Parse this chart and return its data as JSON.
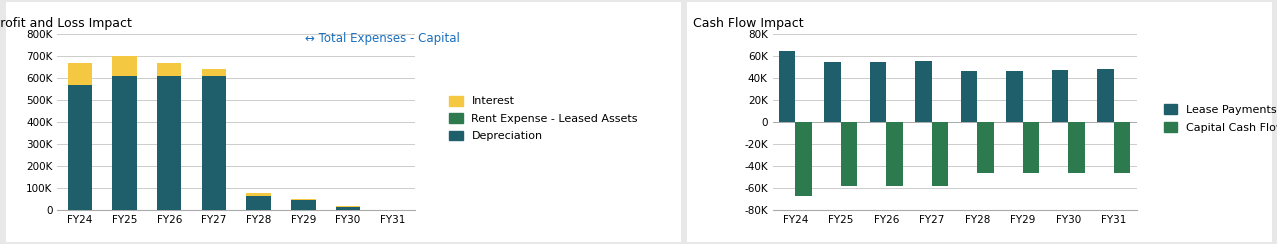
{
  "pl_categories": [
    "FY24",
    "FY25",
    "FY26",
    "FY27",
    "FY28",
    "FY29",
    "FY30",
    "FY31"
  ],
  "pl_depreciation": [
    570000,
    610000,
    610000,
    610000,
    65000,
    45000,
    15000,
    0
  ],
  "pl_rent": [
    0,
    0,
    0,
    0,
    0,
    0,
    0,
    0
  ],
  "pl_interest": [
    100000,
    90000,
    60000,
    30000,
    10000,
    5000,
    2000,
    0
  ],
  "pl_color_depreciation": "#1f5f6b",
  "pl_color_rent": "#2d7a4f",
  "pl_color_interest": "#f5c842",
  "pl_ylim": [
    0,
    800000
  ],
  "pl_yticks": [
    0,
    100000,
    200000,
    300000,
    400000,
    500000,
    600000,
    700000,
    800000
  ],
  "pl_ytick_labels": [
    "0",
    "100K",
    "200K",
    "300K",
    "400K",
    "500K",
    "600K",
    "700K",
    "800K"
  ],
  "pl_title": "Profit and Loss Impact",
  "pl_line_label": "Total Expenses - Capital",
  "cf_categories": [
    "FY24",
    "FY25",
    "FY26",
    "FY27",
    "FY28",
    "FY29",
    "FY30",
    "FY31"
  ],
  "cf_lease_payments": [
    65000,
    55000,
    55000,
    56000,
    46000,
    46000,
    47000,
    48000
  ],
  "cf_capital_impact": [
    -67000,
    -58000,
    -58000,
    -58000,
    -46000,
    -46000,
    -46000,
    -46000
  ],
  "cf_color_lease": "#1f5f6b",
  "cf_color_capital": "#2d7a4f",
  "cf_ylim": [
    -80000,
    80000
  ],
  "cf_yticks": [
    -80000,
    -60000,
    -40000,
    -20000,
    0,
    20000,
    40000,
    60000,
    80000
  ],
  "cf_ytick_labels": [
    "-80K",
    "-60K",
    "-40K",
    "-20K",
    "0",
    "20K",
    "40K",
    "60K",
    "80K"
  ],
  "cf_title": "Cash Flow Impact",
  "background_color": "#e8e8e8",
  "panel_color": "#ffffff",
  "grid_color": "#cccccc",
  "title_fontsize": 9,
  "tick_fontsize": 7.5,
  "legend_fontsize": 8
}
